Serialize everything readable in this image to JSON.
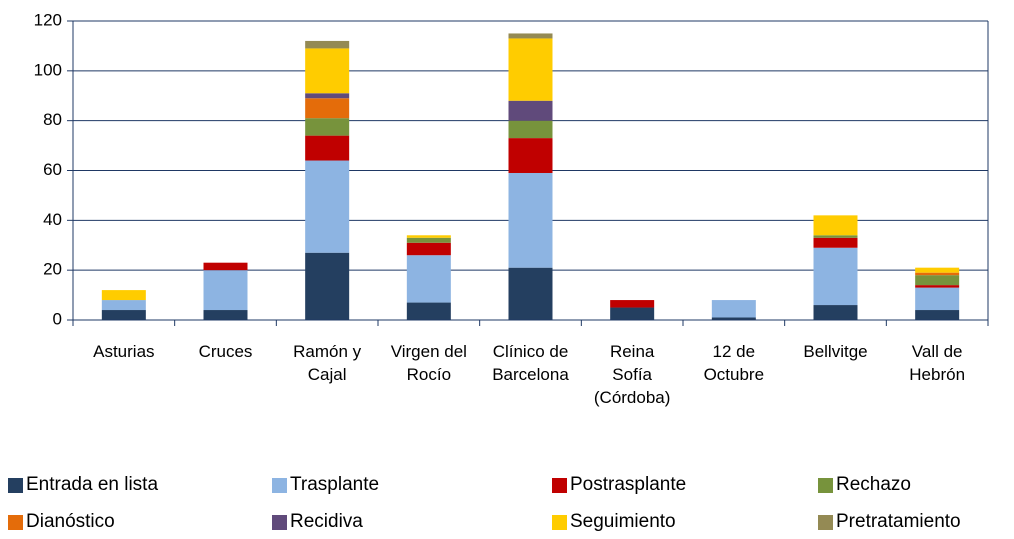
{
  "chart_data": {
    "type": "bar",
    "stacked": true,
    "categories": [
      "Asturias",
      "Cruces",
      "Ramón y Cajal",
      "Virgen del Rocío",
      "Clínico de Barcelona",
      "Reina Sofía (Córdoba)",
      "12 de Octubre",
      "Bellvitge",
      "Vall de Hebrón"
    ],
    "series": [
      {
        "name": "Entrada en lista",
        "color": "#243F60",
        "values": [
          4,
          4,
          27,
          7,
          21,
          5,
          1,
          6,
          4
        ]
      },
      {
        "name": "Trasplante",
        "color": "#8DB4E2",
        "values": [
          4,
          16,
          37,
          19,
          38,
          0,
          7,
          23,
          9
        ]
      },
      {
        "name": "Postrasplante",
        "color": "#C00000",
        "values": [
          0,
          3,
          10,
          5,
          14,
          3,
          0,
          4,
          1
        ]
      },
      {
        "name": "Rechazo",
        "color": "#77933C",
        "values": [
          0,
          0,
          7,
          2,
          7,
          0,
          0,
          1,
          4
        ]
      },
      {
        "name": "Dianóstico",
        "color": "#E46C0A",
        "values": [
          0,
          0,
          8,
          0,
          0,
          0,
          0,
          0,
          1
        ]
      },
      {
        "name": "Recidiva",
        "color": "#604A7B",
        "values": [
          0,
          0,
          2,
          0,
          8,
          0,
          0,
          0,
          0
        ]
      },
      {
        "name": "Seguimiento",
        "color": "#FFCC00",
        "values": [
          4,
          0,
          18,
          1,
          25,
          0,
          0,
          8,
          2
        ]
      },
      {
        "name": "Pretratamiento",
        "color": "#948A54",
        "values": [
          0,
          0,
          3,
          0,
          2,
          0,
          0,
          0,
          0
        ]
      }
    ],
    "ylim": [
      0,
      120
    ],
    "yticks": [
      0,
      20,
      40,
      60,
      80,
      100,
      120
    ],
    "grid": true,
    "legend": "bottom"
  }
}
